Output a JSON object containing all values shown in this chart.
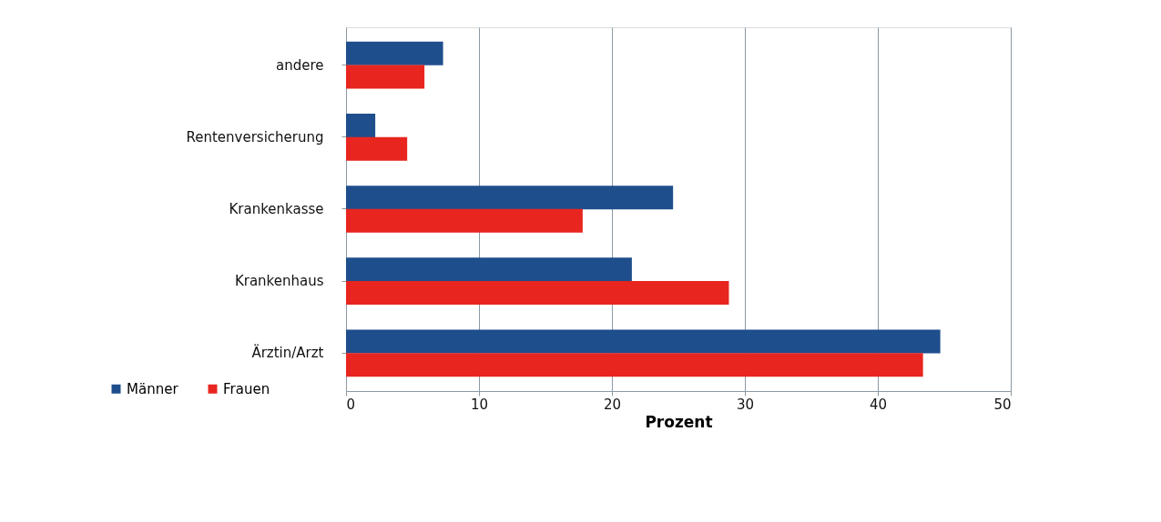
{
  "chart_data": {
    "type": "bar",
    "orientation": "horizontal",
    "xlabel": "Prozent",
    "categories": [
      "andere",
      "Rentenversicherung",
      "Krankenkasse",
      "Krankenhaus",
      "Ärztin/Arzt"
    ],
    "series": [
      {
        "name": "Männer",
        "color": "#1f4e8c",
        "values": [
          7.3,
          2.2,
          24.6,
          21.5,
          44.7
        ]
      },
      {
        "name": "Frauen",
        "color": "#e8251f",
        "values": [
          5.9,
          4.6,
          17.8,
          28.8,
          43.4
        ]
      }
    ],
    "xlim": [
      0,
      50
    ],
    "xticks": [
      0,
      10,
      20,
      30,
      40,
      50
    ],
    "grid": "x",
    "legend": "bottom left"
  }
}
